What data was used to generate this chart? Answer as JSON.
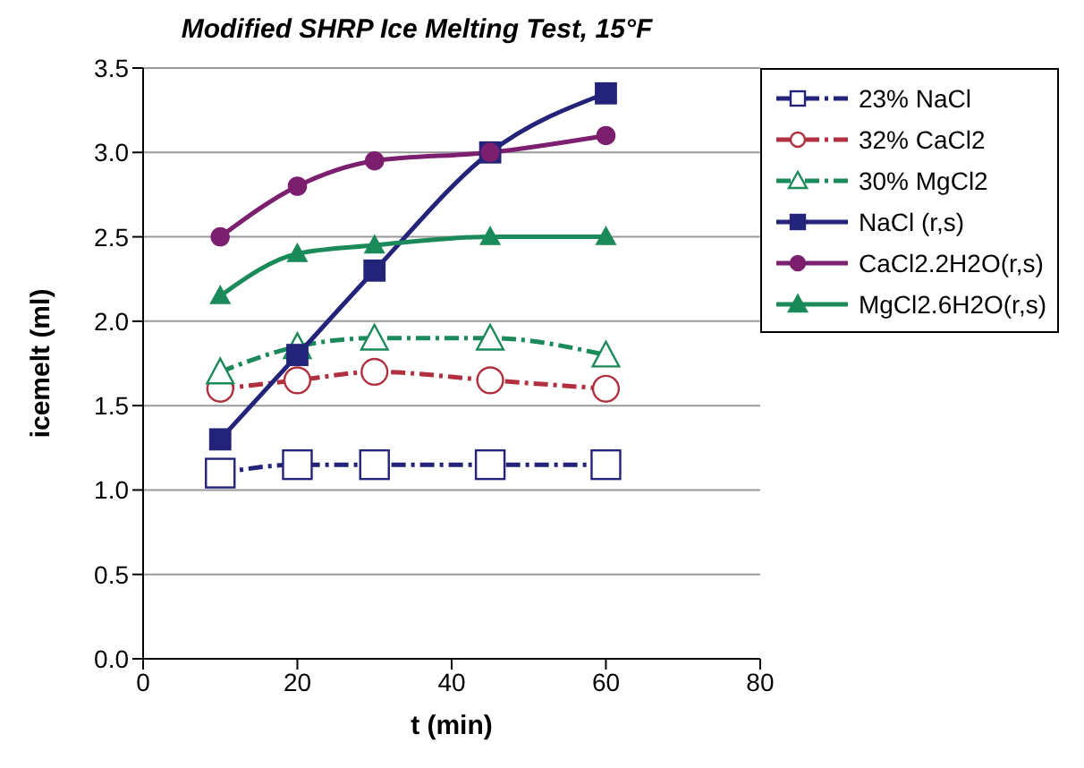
{
  "chart_data": {
    "type": "line",
    "title": "Modified SHRP Ice Melting Test, 15°F",
    "xlabel": "t (min)",
    "ylabel": "icemelt (ml)",
    "x": [
      10,
      20,
      30,
      45,
      60
    ],
    "xlim": [
      0,
      80
    ],
    "xticks": [
      0,
      20,
      40,
      60,
      80
    ],
    "ylim": [
      0,
      3.5
    ],
    "yticks": [
      {
        "value": 0,
        "label": "0.0"
      },
      {
        "value": 0.5,
        "label": "0.5"
      },
      {
        "value": 1,
        "label": "1.0"
      },
      {
        "value": 1.5,
        "label": "1.5"
      },
      {
        "value": 2,
        "label": "2.0"
      },
      {
        "value": 2.5,
        "label": "2.5"
      },
      {
        "value": 3,
        "label": "3.0"
      },
      {
        "value": 3.5,
        "label": "3.5"
      }
    ],
    "grid": "y",
    "legend": "right",
    "series": [
      {
        "name": "23% NaCl",
        "color": "#23237a",
        "marker": "square",
        "line_style": "dashed",
        "values": [
          1.1,
          1.15,
          1.15,
          1.15,
          1.15
        ]
      },
      {
        "name": "32% CaCl2",
        "color": "#b03040",
        "marker": "circle",
        "line_style": "dashed",
        "values": [
          1.6,
          1.65,
          1.7,
          1.65,
          1.6
        ]
      },
      {
        "name": "30% MgCl2",
        "color": "#1a8a5a",
        "marker": "triangle",
        "line_style": "dashed",
        "values": [
          1.7,
          1.85,
          1.9,
          1.9,
          1.8
        ]
      },
      {
        "name": "NaCl (r,s)",
        "color": "#23237a",
        "marker": "square",
        "line_style": "solid",
        "values": [
          1.3,
          1.8,
          2.3,
          3.0,
          3.35
        ]
      },
      {
        "name": "CaCl2.2H2O(r,s)",
        "color": "#7b1f6e",
        "marker": "circle",
        "line_style": "solid",
        "values": [
          2.5,
          2.8,
          2.95,
          3.0,
          3.1
        ]
      },
      {
        "name": "MgCl2.6H2O(r,s)",
        "color": "#1a8a5a",
        "marker": "triangle",
        "line_style": "solid",
        "values": [
          2.15,
          2.4,
          2.45,
          2.5,
          2.5
        ]
      }
    ]
  }
}
